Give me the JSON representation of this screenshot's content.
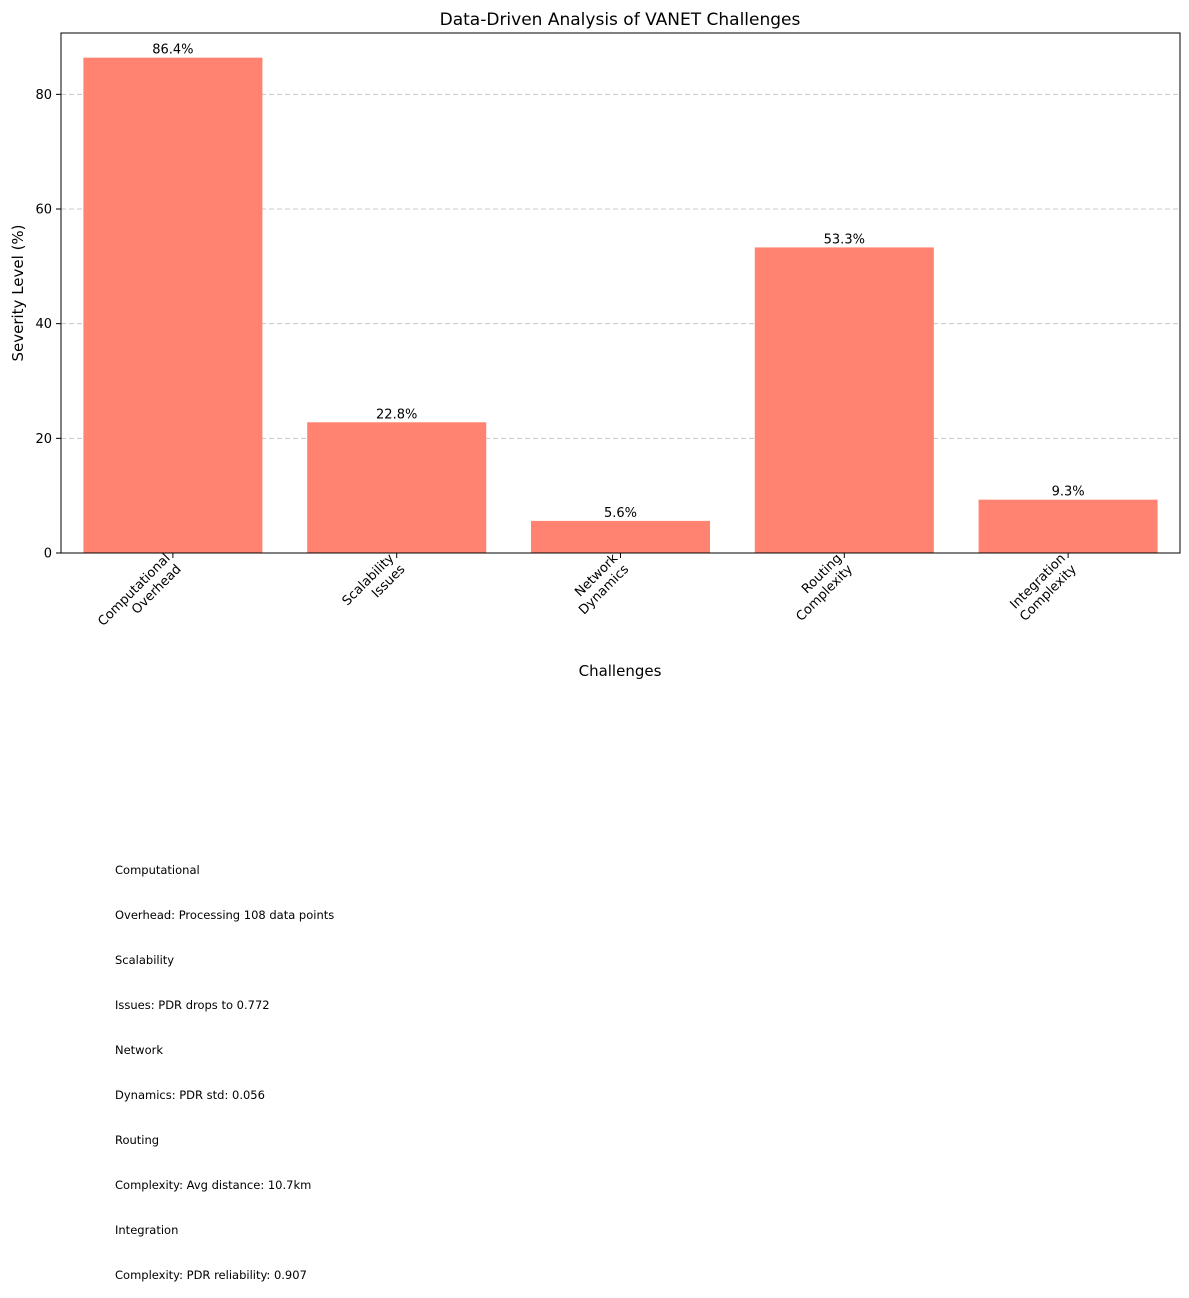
{
  "chart_data": {
    "type": "bar",
    "title": "Data-Driven Analysis of VANET Challenges",
    "xlabel": "Challenges",
    "ylabel": "Severity Level (%)",
    "categories": [
      [
        "Computational",
        "Overhead"
      ],
      [
        "Scalability",
        "Issues"
      ],
      [
        "Network",
        "Dynamics"
      ],
      [
        "Routing",
        "Complexity"
      ],
      [
        "Integration",
        "Complexity"
      ]
    ],
    "values": [
      86.4,
      22.8,
      5.6,
      53.3,
      9.3
    ],
    "value_labels": [
      "86.4%",
      "22.8%",
      "5.6%",
      "53.3%",
      "9.3%"
    ],
    "yticks": [
      0,
      20,
      40,
      60,
      80
    ],
    "ylim": [
      0,
      90.7
    ],
    "grid": "y-dashed",
    "bar_color": "#FF8370"
  },
  "notes": [
    "Computational",
    "Overhead: Processing 108 data points",
    "Scalability",
    "Issues: PDR drops to 0.772",
    "Network",
    "Dynamics: PDR std: 0.056",
    "Routing",
    "Complexity: Avg distance: 10.7km",
    "Integration",
    "Complexity: PDR reliability: 0.907"
  ]
}
